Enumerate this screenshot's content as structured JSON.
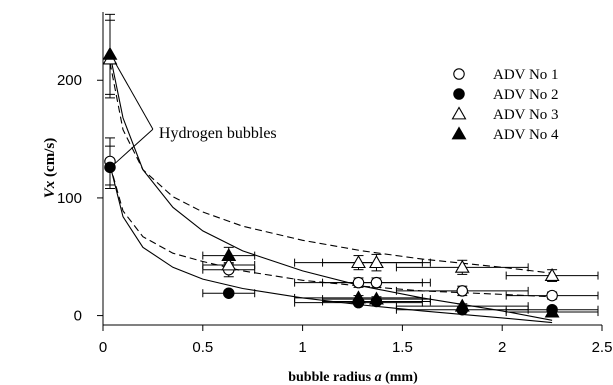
{
  "chart_data": {
    "type": "scatter",
    "xlabel_prefix": "bubble radius ",
    "xlabel_var": "a",
    "xlabel_suffix": " (mm)",
    "ylabel_var": "Vx",
    "ylabel_unit": " (cm/s)",
    "xlim": [
      0,
      2.5
    ],
    "ylim": [
      -8,
      258
    ],
    "xticks": [
      0,
      0.5,
      1,
      1.5,
      2,
      2.5
    ],
    "xtick_labels": [
      "0",
      "0.5",
      "1",
      "1.5",
      "2",
      "2.5"
    ],
    "yticks": [
      0,
      100,
      200
    ],
    "ytick_labels": [
      "0",
      "100",
      "200"
    ],
    "grid": false,
    "legend_position": "right",
    "annotation": {
      "text": "Hydrogen bubbles",
      "x": 0.27,
      "y": 155
    },
    "series": [
      {
        "name": "ADV No 1",
        "marker": "circle-open",
        "points": [
          {
            "x": 0.035,
            "y": 131,
            "yerr": 20
          },
          {
            "x": 0.63,
            "y": 39,
            "xerr": 0.13,
            "yerr": 6
          },
          {
            "x": 1.28,
            "y": 28,
            "xerr": 0.32,
            "yerr": 4
          },
          {
            "x": 1.37,
            "y": 28,
            "xerr": 0.27,
            "yerr": 4
          },
          {
            "x": 1.8,
            "y": 21,
            "xerr": 0.33,
            "yerr": 4
          },
          {
            "x": 2.25,
            "y": 17,
            "xerr": 0.23,
            "yerr": 3
          }
        ]
      },
      {
        "name": "ADV No 2",
        "marker": "circle-filled",
        "points": [
          {
            "x": 0.035,
            "y": 126,
            "yerr": 18
          },
          {
            "x": 0.63,
            "y": 19,
            "xerr": 0.13
          },
          {
            "x": 1.28,
            "y": 11,
            "xerr": 0.32,
            "yerr": 2
          },
          {
            "x": 1.37,
            "y": 12,
            "xerr": 0.27,
            "yerr": 2
          },
          {
            "x": 1.8,
            "y": 5,
            "xerr": 0.33,
            "yerr": 2
          },
          {
            "x": 2.25,
            "y": 5,
            "xerr": 0.23,
            "yerr": 2
          }
        ]
      },
      {
        "name": "ADV No 3",
        "marker": "triangle-open",
        "points": [
          {
            "x": 0.035,
            "y": 218,
            "yerr": 33
          },
          {
            "x": 0.63,
            "y": 43,
            "xerr": 0.13,
            "yerr": 6
          },
          {
            "x": 1.28,
            "y": 45,
            "xerr": 0.32,
            "yerr": 6
          },
          {
            "x": 1.37,
            "y": 45,
            "xerr": 0.27,
            "yerr": 7
          },
          {
            "x": 1.8,
            "y": 41,
            "xerr": 0.33,
            "yerr": 6
          },
          {
            "x": 2.25,
            "y": 34,
            "xerr": 0.23,
            "yerr": 5
          }
        ]
      },
      {
        "name": "ADV No 4",
        "marker": "triangle-filled",
        "points": [
          {
            "x": 0.035,
            "y": 222,
            "yerr": 34
          },
          {
            "x": 0.63,
            "y": 51,
            "xerr": 0.13,
            "yerr": 7
          },
          {
            "x": 1.28,
            "y": 15,
            "xerr": 0.32,
            "yerr": 2
          },
          {
            "x": 1.37,
            "y": 14,
            "xerr": 0.27,
            "yerr": 2
          },
          {
            "x": 1.8,
            "y": 8,
            "xerr": 0.33,
            "yerr": 2
          },
          {
            "x": 2.25,
            "y": 3,
            "xerr": 0.23,
            "yerr": 2
          }
        ]
      }
    ],
    "fit_curves": [
      {
        "style": "dashed",
        "x": [
          0.035,
          0.1,
          0.2,
          0.35,
          0.5,
          0.7,
          1.0,
          1.3,
          1.6,
          2.0,
          2.25
        ],
        "y": [
          215,
          158,
          124,
          101,
          88,
          76,
          64,
          55,
          48,
          41,
          36
        ]
      },
      {
        "style": "dashed",
        "x": [
          0.035,
          0.1,
          0.2,
          0.35,
          0.5,
          0.7,
          1.0,
          1.3,
          1.6,
          2.0,
          2.25
        ],
        "y": [
          128,
          89,
          67,
          53,
          46,
          38,
          30,
          25,
          21,
          18,
          16
        ]
      },
      {
        "style": "solid",
        "x": [
          0.035,
          0.1,
          0.2,
          0.35,
          0.5,
          0.7,
          1.0,
          1.3,
          1.6,
          2.0,
          2.25
        ],
        "y": [
          222,
          168,
          124,
          92,
          72,
          55,
          38,
          25,
          15,
          4,
          -4
        ]
      },
      {
        "style": "solid",
        "x": [
          0.035,
          0.1,
          0.2,
          0.35,
          0.5,
          0.7,
          1.0,
          1.3,
          1.6,
          2.0,
          2.25
        ],
        "y": [
          128,
          84,
          58,
          41,
          31,
          23,
          15,
          9,
          4,
          -2,
          -6
        ]
      }
    ]
  }
}
